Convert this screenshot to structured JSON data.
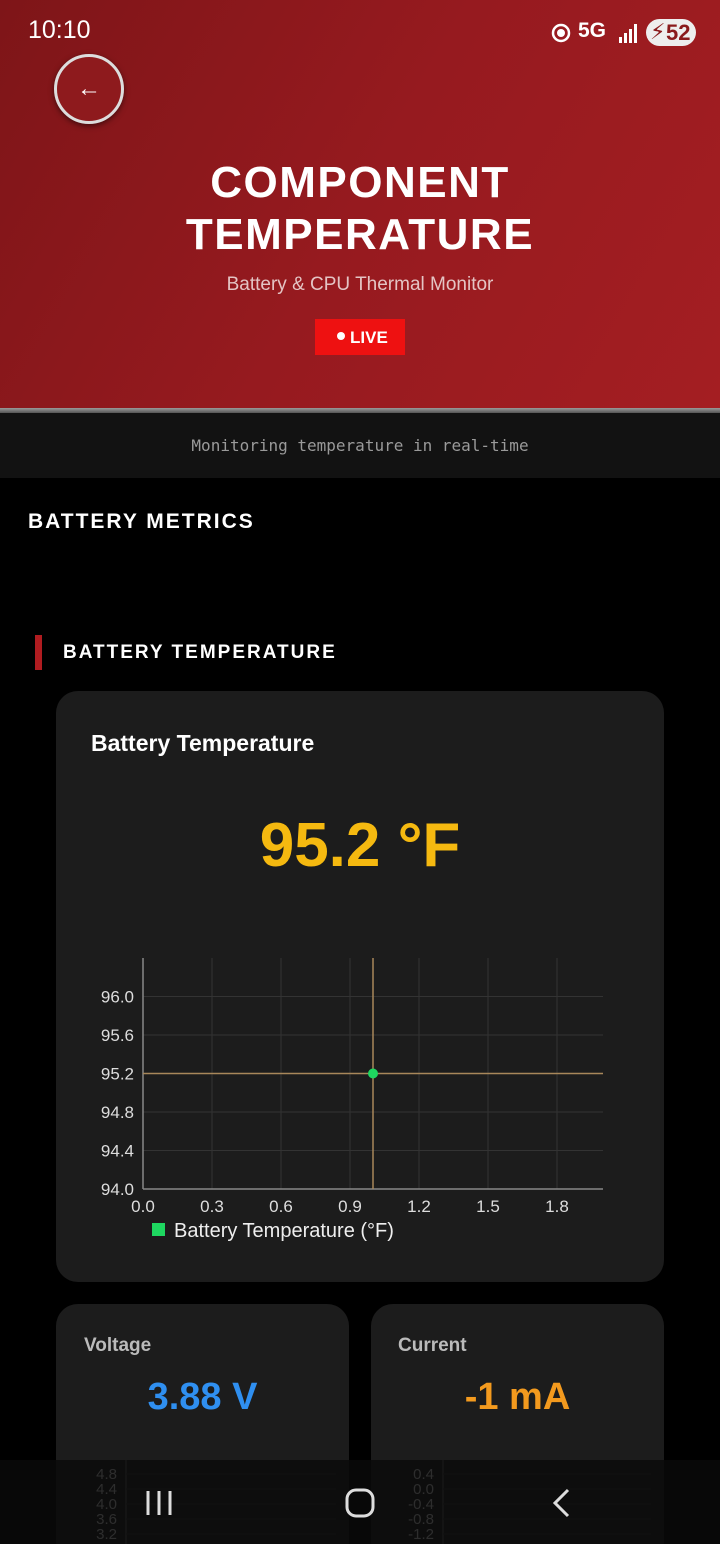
{
  "status_bar": {
    "time": "10:10",
    "network": "5G",
    "battery": "52"
  },
  "header": {
    "back": "←",
    "title_line1": "COMPONENT",
    "title_line2": "TEMPERATURE",
    "subtitle": "Battery & CPU Thermal Monitor",
    "badge": "LIVE"
  },
  "banner": "Monitoring temperature in real-time",
  "section_title": "BATTERY METRICS",
  "subsection_title": "BATTERY TEMPERATURE",
  "temp_card": {
    "title": "Battery Temperature",
    "reading": "95.2 °F",
    "chart": {
      "type": "scatter",
      "x": [
        1.0
      ],
      "series": [
        {
          "name": "Battery Temperature (°F)",
          "color": "#1ed760",
          "values": [
            95.2
          ]
        }
      ],
      "xlim": [
        0,
        2.0
      ],
      "ylim": [
        94.0,
        96.4
      ],
      "xticks": [
        {
          "value": 0,
          "label": "0.0"
        },
        0.3,
        0.6,
        0.9,
        1.2,
        1.5,
        1.8
      ],
      "yticks": [
        {
          "value": 94,
          "label": "94.0"
        },
        94.4,
        94.8,
        95.2,
        95.6,
        {
          "value": 96,
          "label": "96.0"
        }
      ],
      "grid": true,
      "crosshair_color": "#a8875a"
    }
  },
  "metric_cards": [
    {
      "title": "Voltage",
      "reading": "3.88 V",
      "color": "#2f8ff0",
      "chart": {
        "ylim": [
          3.2,
          4.8
        ],
        "yticks": [
          4.8,
          4.4,
          {
            "value": 4,
            "label": "4.0"
          },
          3.6,
          3.2
        ]
      }
    },
    {
      "title": "Current",
      "reading": "-1 mA",
      "color": "#f39a1e",
      "chart": {
        "ylim": [
          -1.2,
          0.4
        ],
        "yticks": [
          0.4,
          {
            "value": 0,
            "label": "0.0"
          },
          -0.4,
          -0.8,
          -1.2
        ]
      }
    }
  ]
}
